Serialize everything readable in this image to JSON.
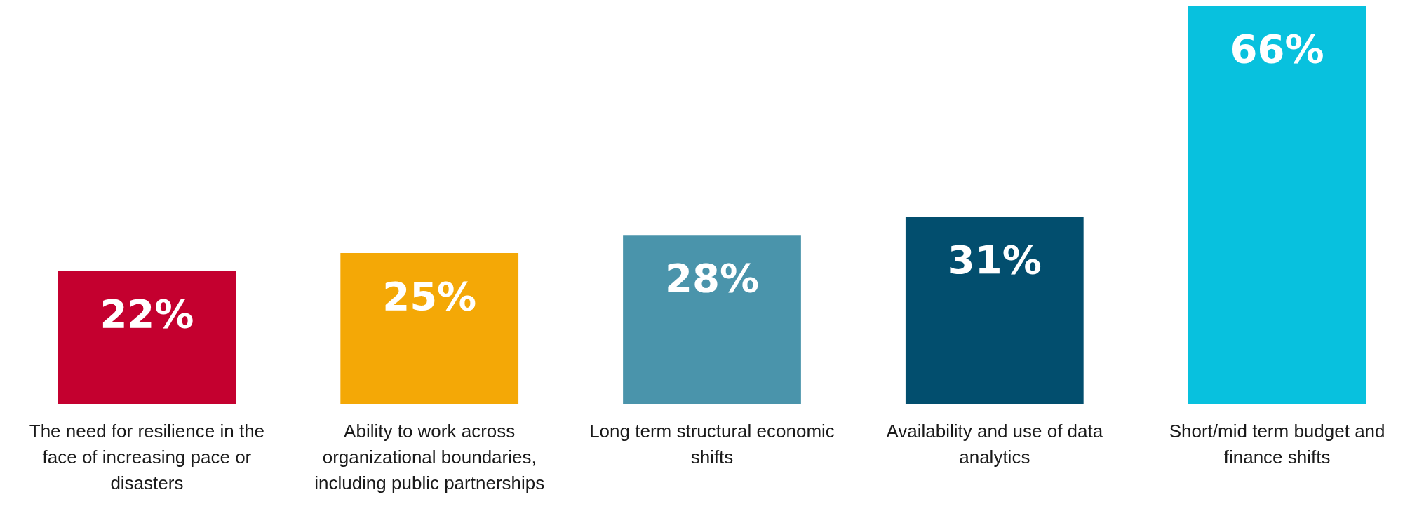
{
  "chart_data": {
    "type": "bar",
    "categories": [
      "The need for resilience in the face of increasing pace or disasters",
      "Ability to work across organizational boundaries, including public partnerships",
      "Long term structural economic shifts",
      "Availability and use of data analytics",
      "Short/mid term budget and finance shifts"
    ],
    "values": [
      22,
      25,
      28,
      31,
      66
    ],
    "colors": [
      "#c4002f",
      "#f4a806",
      "#4a94ab",
      "#024e6e",
      "#08c1de"
    ],
    "value_labels": [
      "22%",
      "25%",
      "28%",
      "31%",
      "66%"
    ],
    "grid": false,
    "legend": false
  }
}
